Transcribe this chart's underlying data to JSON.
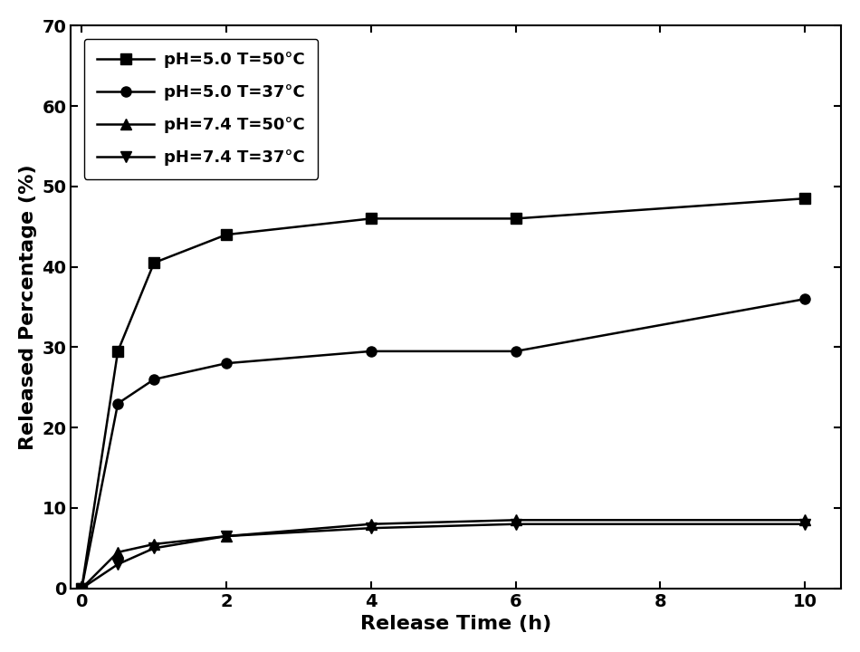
{
  "series": [
    {
      "label": "pH=5.0 T=50°C",
      "marker": "s",
      "x": [
        0,
        0.5,
        1,
        2,
        4,
        6,
        10
      ],
      "y": [
        0,
        29.5,
        40.5,
        44.0,
        46.0,
        46.0,
        48.5
      ]
    },
    {
      "label": "pH=5.0 T=37°C",
      "marker": "o",
      "x": [
        0,
        0.5,
        1,
        2,
        4,
        6,
        10
      ],
      "y": [
        0,
        23.0,
        26.0,
        28.0,
        29.5,
        29.5,
        36.0
      ]
    },
    {
      "label": "pH=7.4 T=50°C",
      "marker": "^",
      "x": [
        0,
        0.5,
        1,
        2,
        4,
        6,
        10
      ],
      "y": [
        0,
        4.5,
        5.5,
        6.5,
        8.0,
        8.5,
        8.5
      ]
    },
    {
      "label": "pH=7.4 T=37°C",
      "marker": "v",
      "x": [
        0,
        0.5,
        1,
        2,
        4,
        6,
        10
      ],
      "y": [
        0,
        3.0,
        5.0,
        6.5,
        7.5,
        8.0,
        8.0
      ]
    }
  ],
  "xlabel": "Release Time (h)",
  "ylabel": "Released Percentage (%)",
  "xlim": [
    -0.15,
    10.5
  ],
  "ylim": [
    0,
    70
  ],
  "xticks": [
    0,
    2,
    4,
    6,
    8,
    10
  ],
  "yticks": [
    0,
    10,
    20,
    30,
    40,
    50,
    60,
    70
  ],
  "line_color": "#000000",
  "marker_color": "#000000",
  "linewidth": 1.8,
  "markersize": 8,
  "legend_fontsize": 13,
  "axis_fontsize": 16,
  "tick_fontsize": 14,
  "background_color": "#ffffff"
}
